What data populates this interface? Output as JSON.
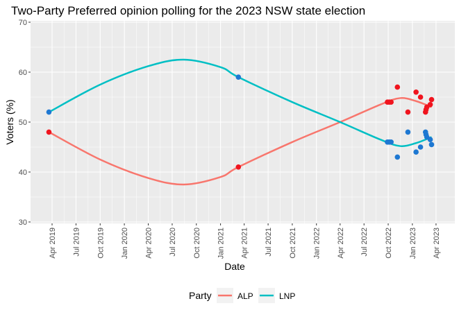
{
  "chart_data": {
    "type": "scatter",
    "title": "Two-Party Preferred opinion polling for the 2023 NSW state election",
    "xlabel": "Date",
    "ylabel": "Voters (%)",
    "ylim": [
      30,
      70
    ],
    "yticks": [
      30,
      40,
      50,
      60,
      70
    ],
    "xlim": [
      "2019-02-15",
      "2023-04-25"
    ],
    "xticks": [
      {
        "date": "2019-04-01",
        "label": "Apr 2019"
      },
      {
        "date": "2019-07-01",
        "label": "Jul 2019"
      },
      {
        "date": "2019-10-01",
        "label": "Oct 2019"
      },
      {
        "date": "2020-01-01",
        "label": "Jan 2020"
      },
      {
        "date": "2020-04-01",
        "label": "Apr 2020"
      },
      {
        "date": "2020-07-01",
        "label": "Jul 2020"
      },
      {
        "date": "2020-10-01",
        "label": "Oct 2020"
      },
      {
        "date": "2021-01-01",
        "label": "Jan 2021"
      },
      {
        "date": "2021-04-01",
        "label": "Apr 2021"
      },
      {
        "date": "2021-07-01",
        "label": "Jul 2021"
      },
      {
        "date": "2021-10-01",
        "label": "Oct 2021"
      },
      {
        "date": "2022-01-01",
        "label": "Jan 2022"
      },
      {
        "date": "2022-04-01",
        "label": "Apr 2022"
      },
      {
        "date": "2022-07-01",
        "label": "Jul 2022"
      },
      {
        "date": "2022-10-01",
        "label": "Oct 2022"
      },
      {
        "date": "2023-01-01",
        "label": "Jan 2023"
      },
      {
        "date": "2023-04-01",
        "label": "Apr 2023"
      }
    ],
    "grid": true,
    "legend": {
      "title": "Party",
      "position": "bottom"
    },
    "series": [
      {
        "name": "ALP",
        "line_color": "#F8766D",
        "point_color": "#F0141E",
        "points": [
          [
            "2019-03-20",
            48
          ],
          [
            "2021-03-10",
            41
          ],
          [
            "2022-09-28",
            54
          ],
          [
            "2022-10-05",
            54
          ],
          [
            "2022-10-12",
            54
          ],
          [
            "2022-11-05",
            57
          ],
          [
            "2022-12-15",
            52
          ],
          [
            "2023-01-15",
            56
          ],
          [
            "2023-02-01",
            55
          ],
          [
            "2023-02-20",
            52
          ],
          [
            "2023-02-22",
            52.5
          ],
          [
            "2023-02-25",
            53
          ],
          [
            "2023-03-10",
            53.5
          ],
          [
            "2023-03-15",
            54.5
          ]
        ],
        "smooth": [
          [
            "2019-03-20",
            48
          ],
          [
            "2019-10-01",
            42.5
          ],
          [
            "2020-04-01",
            38.8
          ],
          [
            "2020-08-15",
            37.5
          ],
          [
            "2021-01-01",
            39
          ],
          [
            "2021-03-10",
            41
          ],
          [
            "2021-10-01",
            46
          ],
          [
            "2022-04-01",
            50
          ],
          [
            "2022-09-01",
            53.5
          ],
          [
            "2022-11-15",
            54.8
          ],
          [
            "2023-01-15",
            54.2
          ],
          [
            "2023-03-15",
            53
          ]
        ]
      },
      {
        "name": "LNP",
        "line_color": "#00BFC4",
        "point_color": "#1E78D2",
        "points": [
          [
            "2019-03-20",
            52
          ],
          [
            "2021-03-10",
            59
          ],
          [
            "2022-09-28",
            46
          ],
          [
            "2022-10-05",
            46
          ],
          [
            "2022-10-12",
            46
          ],
          [
            "2022-11-05",
            43
          ],
          [
            "2022-12-15",
            48
          ],
          [
            "2023-01-15",
            44
          ],
          [
            "2023-02-01",
            45
          ],
          [
            "2023-02-20",
            48
          ],
          [
            "2023-02-22",
            47.5
          ],
          [
            "2023-02-25",
            47
          ],
          [
            "2023-03-10",
            46.5
          ],
          [
            "2023-03-15",
            45.5
          ]
        ],
        "smooth": [
          [
            "2019-03-20",
            52
          ],
          [
            "2019-10-01",
            57.5
          ],
          [
            "2020-04-01",
            61.2
          ],
          [
            "2020-08-15",
            62.5
          ],
          [
            "2021-01-01",
            61
          ],
          [
            "2021-03-10",
            59
          ],
          [
            "2021-10-01",
            54
          ],
          [
            "2022-04-01",
            50
          ],
          [
            "2022-09-01",
            46.5
          ],
          [
            "2022-11-15",
            45.2
          ],
          [
            "2023-01-15",
            45.8
          ],
          [
            "2023-03-15",
            47
          ]
        ]
      }
    ]
  }
}
